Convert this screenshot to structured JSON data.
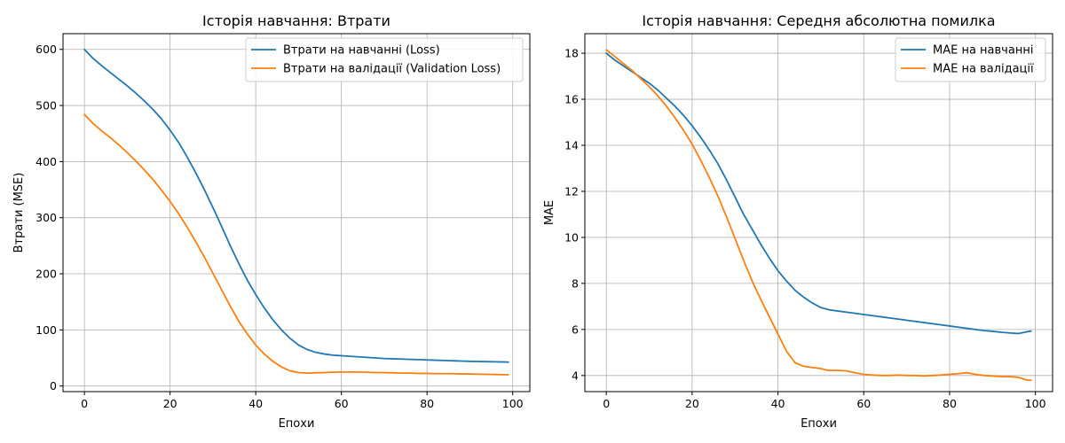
{
  "colors": {
    "train": "#1f77b4",
    "val": "#ff7f0e",
    "grid": "#b0b0b0",
    "spine": "#000000"
  },
  "chart_data": [
    {
      "type": "line",
      "title": "Історія навчання: Втрати",
      "xlabel": "Епохи",
      "ylabel": "Втрати (MSE)",
      "xlim": [
        -5,
        104
      ],
      "ylim": [
        -10,
        628
      ],
      "xticks": [
        0,
        20,
        40,
        60,
        80,
        100
      ],
      "xtick_labels": [
        "0",
        "20",
        "40",
        "60",
        "80",
        "100"
      ],
      "yticks": [
        0,
        100,
        200,
        300,
        400,
        500,
        600
      ],
      "ytick_labels": [
        "0",
        "100",
        "200",
        "300",
        "400",
        "500",
        "600"
      ],
      "grid": true,
      "legend_position": "top-right",
      "series": [
        {
          "name": "Втрати на навчанні (Loss)",
          "color": "#1f77b4",
          "x": [
            0,
            2,
            4,
            6,
            8,
            10,
            12,
            14,
            16,
            18,
            20,
            22,
            24,
            26,
            28,
            30,
            32,
            34,
            36,
            38,
            40,
            42,
            44,
            46,
            48,
            50,
            52,
            54,
            56,
            58,
            60,
            62,
            64,
            66,
            68,
            70,
            72,
            74,
            76,
            78,
            80,
            82,
            84,
            86,
            88,
            90,
            92,
            94,
            96,
            98,
            99
          ],
          "y": [
            600,
            584,
            571,
            559,
            547,
            535,
            522,
            508,
            493,
            476,
            456,
            434,
            408,
            380,
            350,
            318,
            285,
            251,
            219,
            189,
            163,
            139,
            118,
            100,
            85,
            73,
            65,
            60,
            57,
            55,
            54,
            53,
            52,
            51,
            50,
            49,
            48.5,
            48,
            47.5,
            47,
            46.5,
            46,
            45.5,
            45,
            44.5,
            44,
            43.7,
            43.4,
            43.1,
            42.8,
            42.5
          ]
        },
        {
          "name": "Втрати на валідації (Validation Loss)",
          "color": "#ff7f0e",
          "x": [
            0,
            2,
            4,
            6,
            8,
            10,
            12,
            14,
            16,
            18,
            20,
            22,
            24,
            26,
            28,
            30,
            32,
            34,
            36,
            38,
            40,
            42,
            44,
            46,
            48,
            50,
            52,
            54,
            56,
            58,
            60,
            62,
            64,
            66,
            68,
            70,
            72,
            74,
            76,
            78,
            80,
            82,
            84,
            86,
            88,
            90,
            92,
            94,
            96,
            98,
            99
          ],
          "y": [
            484,
            468,
            455,
            443,
            430,
            416,
            401,
            385,
            368,
            349,
            329,
            307,
            283,
            257,
            230,
            201,
            172,
            143,
            116,
            93,
            73,
            57,
            44,
            34,
            27,
            24,
            23,
            23.5,
            24,
            24.5,
            25,
            25,
            25,
            24.5,
            24,
            24,
            23.5,
            23,
            23,
            22.5,
            22.5,
            22,
            22,
            22,
            21.5,
            21.5,
            21,
            20.8,
            20.5,
            20.2,
            20
          ]
        }
      ]
    },
    {
      "type": "line",
      "title": "Історія навчання: Середня абсолютна помилка",
      "xlabel": "Епохи",
      "ylabel": "MAE",
      "xlim": [
        -5,
        104
      ],
      "ylim": [
        3.3,
        18.85
      ],
      "xticks": [
        0,
        20,
        40,
        60,
        80,
        100
      ],
      "xtick_labels": [
        "0",
        "20",
        "40",
        "60",
        "80",
        "100"
      ],
      "yticks": [
        4,
        6,
        8,
        10,
        12,
        14,
        16,
        18
      ],
      "ytick_labels": [
        "4",
        "6",
        "8",
        "10",
        "12",
        "14",
        "16",
        "18"
      ],
      "grid": true,
      "legend_position": "top-right",
      "series": [
        {
          "name": "MAE на навчанні",
          "color": "#1f77b4",
          "x": [
            0,
            2,
            4,
            6,
            8,
            10,
            12,
            14,
            16,
            18,
            20,
            22,
            24,
            26,
            28,
            30,
            32,
            34,
            36,
            38,
            40,
            42,
            44,
            46,
            48,
            50,
            52,
            54,
            56,
            58,
            60,
            62,
            64,
            66,
            68,
            70,
            72,
            74,
            76,
            78,
            80,
            82,
            84,
            86,
            88,
            90,
            92,
            94,
            96,
            98,
            99
          ],
          "y": [
            18.0,
            17.7,
            17.45,
            17.2,
            16.95,
            16.7,
            16.4,
            16.05,
            15.7,
            15.3,
            14.85,
            14.35,
            13.8,
            13.2,
            12.5,
            11.75,
            11.0,
            10.35,
            9.7,
            9.1,
            8.55,
            8.1,
            7.7,
            7.4,
            7.15,
            6.95,
            6.85,
            6.8,
            6.75,
            6.7,
            6.65,
            6.6,
            6.55,
            6.5,
            6.45,
            6.4,
            6.35,
            6.3,
            6.25,
            6.2,
            6.15,
            6.1,
            6.05,
            6.0,
            5.95,
            5.92,
            5.88,
            5.85,
            5.82,
            5.9,
            5.93
          ]
        },
        {
          "name": "MAE на валідації",
          "color": "#ff7f0e",
          "x": [
            0,
            2,
            4,
            6,
            8,
            10,
            12,
            14,
            16,
            18,
            20,
            22,
            24,
            26,
            28,
            30,
            32,
            34,
            36,
            38,
            40,
            42,
            44,
            46,
            48,
            50,
            51,
            52,
            54,
            56,
            58,
            60,
            62,
            64,
            66,
            68,
            70,
            72,
            74,
            76,
            78,
            80,
            82,
            84,
            86,
            88,
            90,
            92,
            94,
            96,
            98,
            99
          ],
          "y": [
            18.15,
            17.85,
            17.55,
            17.25,
            16.9,
            16.55,
            16.15,
            15.7,
            15.2,
            14.65,
            14.05,
            13.35,
            12.6,
            11.8,
            10.9,
            9.95,
            9.0,
            8.1,
            7.3,
            6.55,
            5.8,
            5.05,
            4.55,
            4.4,
            4.35,
            4.3,
            4.25,
            4.22,
            4.22,
            4.2,
            4.12,
            4.05,
            4.02,
            4.0,
            4.0,
            4.02,
            4.0,
            4.0,
            3.98,
            4.0,
            4.02,
            4.05,
            4.08,
            4.12,
            4.05,
            4.0,
            3.98,
            3.95,
            3.95,
            3.92,
            3.8,
            3.8
          ]
        }
      ]
    }
  ]
}
